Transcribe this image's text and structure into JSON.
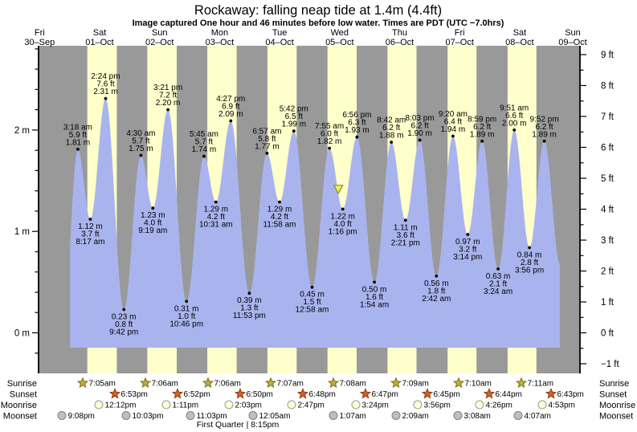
{
  "header": {
    "title": "Rockaway: falling  neap tide at 1.4m (4.4ft)",
    "subtitle": "Image captured One hour and 46 minutes before low water. Times are PDT (UTC −7.0hrs)"
  },
  "colors": {
    "day_label_red": "#dd2020",
    "band_night": "#999999",
    "band_daylight": "#ffffcc",
    "water_fill": "#a9b4ee",
    "axis_black": "#000000",
    "marker_fill": "#f0f060",
    "marker_stroke": "#8f8f10",
    "sunrise_star_fill": "#bfae3a",
    "sunrise_star_stroke": "#7a6d1a",
    "sunset_star_fill": "#d2622a",
    "sunset_star_stroke": "#8f3a10",
    "moonrise_fill": "#ffffd6",
    "moonrise_stroke": "#999999",
    "moonset_fill": "#bfbfbf",
    "moonset_stroke": "#808080"
  },
  "chart_data": {
    "type": "area",
    "title": "Rockaway: falling  neap tide at 1.4m (4.4ft)",
    "x_axis": "days (Fri 30-Sep to Sun 09-Oct), alternating night (gray) / daylight (yellow) bands",
    "axis_left": {
      "unit": "m",
      "range_m": [
        -0.45,
        2.83
      ],
      "labels": [
        {
          "m": 0,
          "label": "0 m"
        },
        {
          "m": 1,
          "label": "1 m"
        },
        {
          "m": 2,
          "label": "2 m"
        }
      ]
    },
    "axis_right": {
      "unit": "ft",
      "range_ft": [
        -1.3,
        9.3
      ],
      "labels": [
        {
          "ft": -1,
          "label": "−1 ft"
        },
        {
          "ft": 0,
          "label": "0 ft"
        },
        {
          "ft": 1,
          "label": "1 ft"
        },
        {
          "ft": 2,
          "label": "2 ft"
        },
        {
          "ft": 3,
          "label": "3 ft"
        },
        {
          "ft": 4,
          "label": "4 ft"
        },
        {
          "ft": 5,
          "label": "5 ft"
        },
        {
          "ft": 6,
          "label": "6 ft"
        },
        {
          "ft": 7,
          "label": "7 ft"
        },
        {
          "ft": 8,
          "label": "8 ft"
        },
        {
          "ft": 9,
          "label": "9 ft"
        }
      ]
    },
    "days": [
      {
        "weekday": "Fri",
        "date": "30–Sep"
      },
      {
        "weekday": "Sat",
        "date": "01–Oct"
      },
      {
        "weekday": "Sun",
        "date": "02–Oct"
      },
      {
        "weekday": "Mon",
        "date": "03–Oct"
      },
      {
        "weekday": "Tue",
        "date": "04–Oct"
      },
      {
        "weekday": "Wed",
        "date": "05–Oct"
      },
      {
        "weekday": "Thu",
        "date": "06–Oct"
      },
      {
        "weekday": "Fri",
        "date": "07–Oct"
      },
      {
        "weekday": "Sat",
        "date": "08–Oct"
      },
      {
        "weekday": "Sun",
        "date": "09–Oct"
      }
    ],
    "tides": [
      {
        "kind": "high",
        "day": 1,
        "time": "3:18 am",
        "ft": "5.9 ft",
        "m": "1.81 m"
      },
      {
        "kind": "low",
        "day": 1,
        "time": "8:17 am",
        "ft": "3.7 ft",
        "m": "1.12 m"
      },
      {
        "kind": "high",
        "day": 1,
        "time": "2:24 pm",
        "ft": "7.6 ft",
        "m": "2.31 m"
      },
      {
        "kind": "low",
        "day": 1,
        "time": "9:42 pm",
        "ft": "0.8 ft",
        "m": "0.23 m"
      },
      {
        "kind": "high",
        "day": 2,
        "time": "4:30 am",
        "ft": "5.7 ft",
        "m": "1.75 m"
      },
      {
        "kind": "low",
        "day": 2,
        "time": "9:19 am",
        "ft": "4.0 ft",
        "m": "1.23 m"
      },
      {
        "kind": "high",
        "day": 2,
        "time": "3:21 pm",
        "ft": "7.2 ft",
        "m": "2.20 m"
      },
      {
        "kind": "low",
        "day": 2,
        "time": "10:46 pm",
        "ft": "1.0 ft",
        "m": "0.31 m"
      },
      {
        "kind": "high",
        "day": 3,
        "time": "5:45 am",
        "ft": "5.7 ft",
        "m": "1.74 m"
      },
      {
        "kind": "low",
        "day": 3,
        "time": "10:31 am",
        "ft": "4.2 ft",
        "m": "1.29 m"
      },
      {
        "kind": "high",
        "day": 3,
        "time": "4:27 pm",
        "ft": "6.9 ft",
        "m": "2.09 m"
      },
      {
        "kind": "low",
        "day": 3,
        "time": "11:53 pm",
        "ft": "1.3 ft",
        "m": "0.39 m"
      },
      {
        "kind": "high",
        "day": 4,
        "time": "6:57 am",
        "ft": "5.8 ft",
        "m": "1.77 m"
      },
      {
        "kind": "low",
        "day": 4,
        "time": "11:58 am",
        "ft": "4.2 ft",
        "m": "1.29 m"
      },
      {
        "kind": "high",
        "day": 4,
        "time": "5:42 pm",
        "ft": "6.5 ft",
        "m": "1.99 m"
      },
      {
        "kind": "low",
        "day": 5,
        "time": "12:58 am",
        "ft": "1.5 ft",
        "m": "0.45 m"
      },
      {
        "kind": "high",
        "day": 5,
        "time": "7:55 am",
        "ft": "6.0 ft",
        "m": "1.82 m"
      },
      {
        "kind": "low",
        "day": 5,
        "time": "1:16 pm",
        "ft": "4.0 ft",
        "m": "1.22 m"
      },
      {
        "kind": "high",
        "day": 5,
        "time": "6:56 pm",
        "ft": "6.3 ft",
        "m": "1.93 m"
      },
      {
        "kind": "low",
        "day": 6,
        "time": "1:54 am",
        "ft": "1.6 ft",
        "m": "0.50 m"
      },
      {
        "kind": "high",
        "day": 6,
        "time": "8:42 am",
        "ft": "6.2 ft",
        "m": "1.88 m"
      },
      {
        "kind": "low",
        "day": 6,
        "time": "2:21 pm",
        "ft": "3.6 ft",
        "m": "1.11 m"
      },
      {
        "kind": "high",
        "day": 6,
        "time": "8:03 pm",
        "ft": "6.2 ft",
        "m": "1.90 m"
      },
      {
        "kind": "low",
        "day": 7,
        "time": "2:42 am",
        "ft": "1.8 ft",
        "m": "0.56 m"
      },
      {
        "kind": "high",
        "day": 7,
        "time": "9:20 am",
        "ft": "6.4 ft",
        "m": "1.94 m"
      },
      {
        "kind": "low",
        "day": 7,
        "time": "3:14 pm",
        "ft": "3.2 ft",
        "m": "0.97 m"
      },
      {
        "kind": "high",
        "day": 7,
        "time": "8:59 pm",
        "ft": "6.2 ft",
        "m": "1.89 m"
      },
      {
        "kind": "low",
        "day": 8,
        "time": "3:24 am",
        "ft": "2.1 ft",
        "m": "0.63 m"
      },
      {
        "kind": "high",
        "day": 8,
        "time": "9:51 am",
        "ft": "6.6 ft",
        "m": "2.00 m"
      },
      {
        "kind": "low",
        "day": 8,
        "time": "3:56 pm",
        "ft": "2.8 ft",
        "m": "0.84 m"
      },
      {
        "kind": "high",
        "day": 8,
        "time": "9:52 pm",
        "ft": "6.2 ft",
        "m": "1.89 m"
      }
    ],
    "current_marker": {
      "day": 5,
      "time": "11:30 am",
      "note": "yellow triangle: capture time, 1h46m before the 1:16 pm low water"
    }
  },
  "astro": {
    "rows": [
      {
        "name": "Sunrise",
        "icon": "sunrise-star",
        "times": [
          "7:05am",
          "7:06am",
          "7:06am",
          "7:07am",
          "7:08am",
          "7:09am",
          "7:10am",
          "7:11am"
        ]
      },
      {
        "name": "Sunset",
        "icon": "sunset-star",
        "times": [
          "6:53pm",
          "6:52pm",
          "6:50pm",
          "6:48pm",
          "6:47pm",
          "6:45pm",
          "6:44pm",
          "6:43pm"
        ]
      },
      {
        "name": "Moonrise",
        "icon": "moonrise-circle",
        "times": [
          "12:12pm",
          "1:11pm",
          "2:03pm",
          "2:47pm",
          "3:24pm",
          "3:56pm",
          "4:26pm",
          "4:53pm"
        ]
      },
      {
        "name": "Moonset",
        "icon": "moonset-circle",
        "times": [
          "9:08pm",
          "10:03pm",
          "11:03pm",
          "12:05am",
          "1:07am",
          "2:09am",
          "3:08am",
          "4:07am"
        ]
      }
    ],
    "moon_phase": "First Quarter | 8:15pm"
  }
}
